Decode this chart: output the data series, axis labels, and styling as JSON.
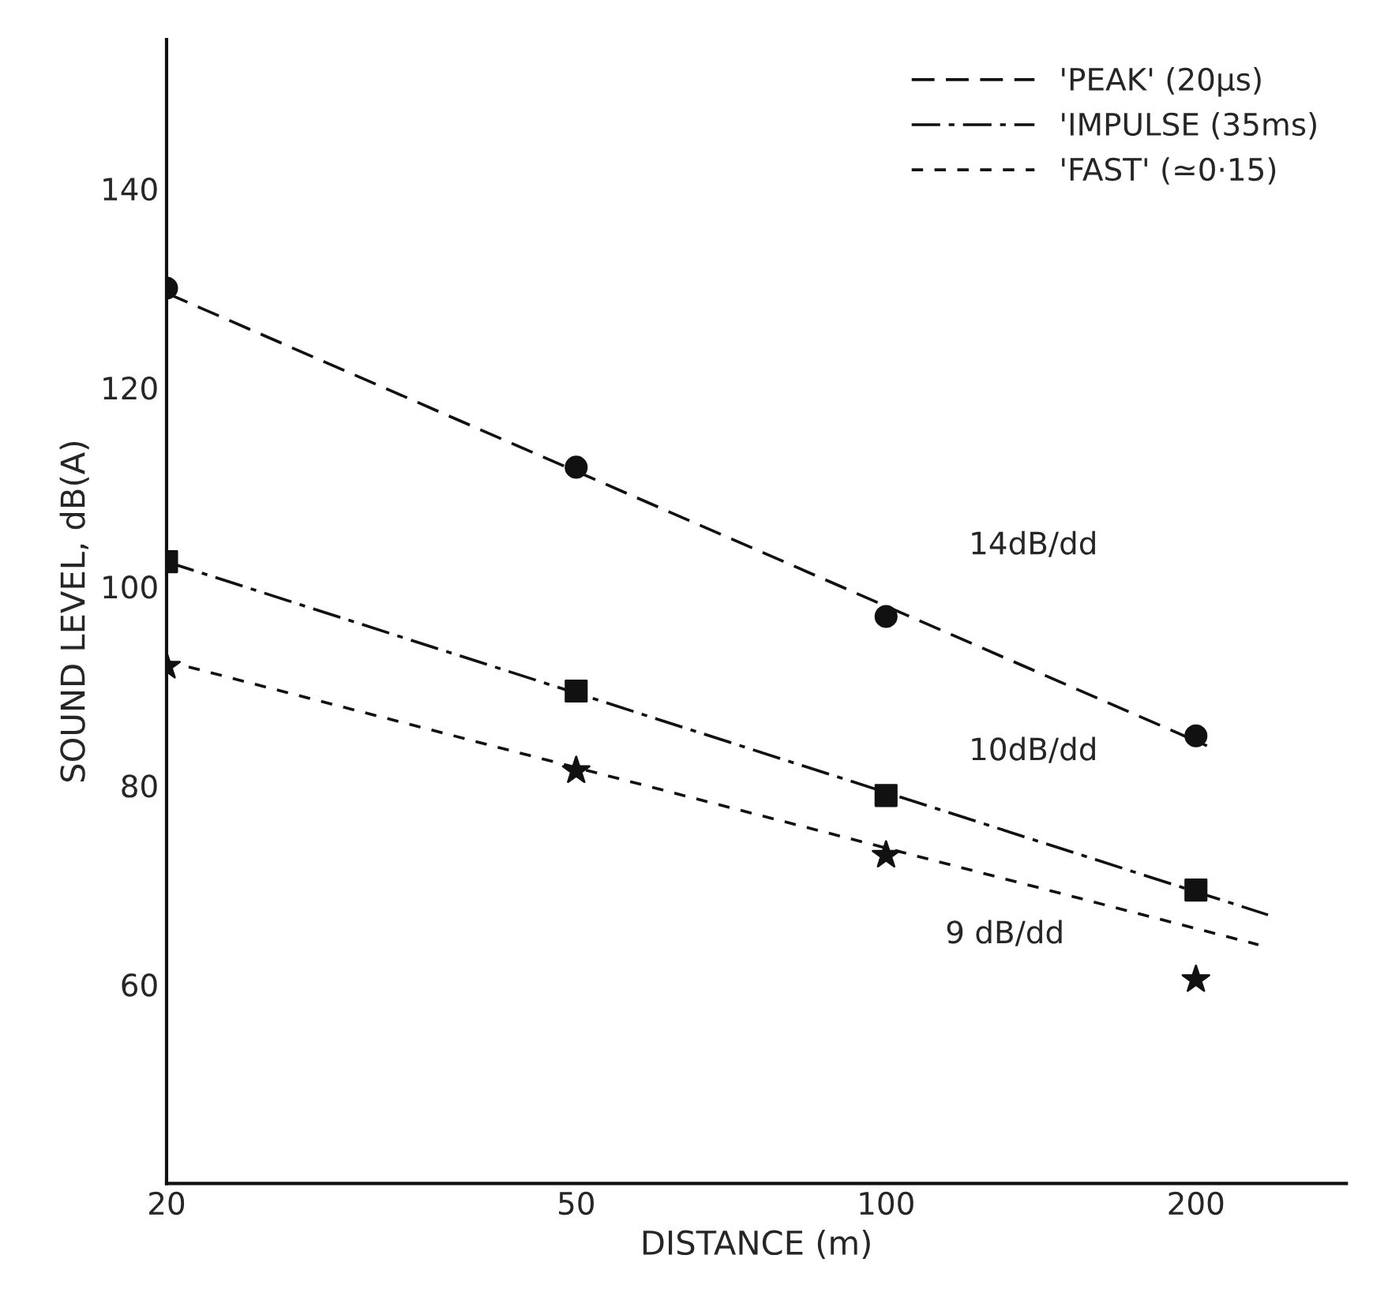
{
  "chart_data": {
    "type": "line",
    "xlabel": "DISTANCE (m)",
    "ylabel": "SOUND LEVEL, dB(A)",
    "log": "x",
    "xlim": [
      20,
      280
    ],
    "xticks": [
      20,
      50,
      100,
      200
    ],
    "ylim": [
      40,
      155
    ],
    "yticks": [
      60,
      80,
      100,
      120,
      140
    ],
    "grid": false,
    "legend": "top right",
    "series": [
      {
        "name": "'PEAK' (20µs)",
        "color": "#111111",
        "line_style": "dashed",
        "marker": "none",
        "x": [
          20,
          205
        ],
        "values": [
          129.5,
          84
        ]
      },
      {
        "name": "'IMPULSE (35ms)",
        "color": "#111111",
        "line_style": "dashdot",
        "marker": "none",
        "x": [
          20,
          235
        ],
        "values": [
          102.5,
          67
        ]
      },
      {
        "name": "'FAST' (≃0·15)",
        "color": "#111111",
        "line_style": "dotted",
        "marker": "none",
        "x": [
          20,
          230
        ],
        "values": [
          92.5,
          64
        ]
      },
      {
        "type": "scatter",
        "color": "#111111",
        "marker": "circle",
        "x": [
          20,
          50,
          100,
          200
        ],
        "values": [
          130,
          112,
          97,
          85
        ]
      },
      {
        "type": "scatter",
        "color": "#111111",
        "marker": "square",
        "x": [
          20,
          50,
          100,
          200
        ],
        "values": [
          102.5,
          89.5,
          79,
          69.5
        ]
      },
      {
        "type": "scatter",
        "color": "#111111",
        "marker": "star",
        "x": [
          20,
          50,
          100,
          200
        ],
        "values": [
          92,
          81.5,
          73,
          60.5
        ]
      }
    ],
    "annotations": [
      "14dB/dd",
      "10dB/dd",
      "9 dB/dd"
    ]
  }
}
